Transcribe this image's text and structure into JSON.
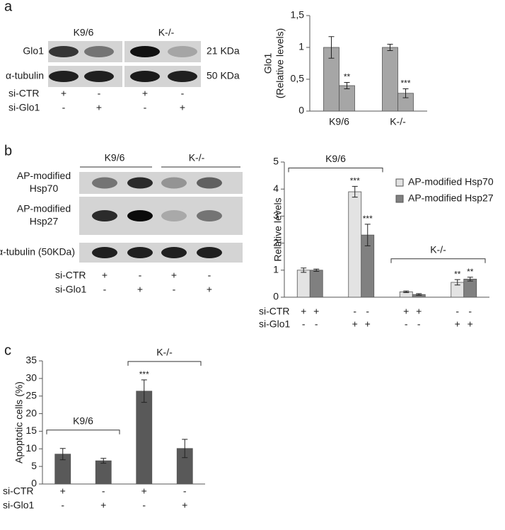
{
  "panels": [
    "a",
    "b",
    "c"
  ],
  "blot_a": {
    "groups": [
      "K9/6",
      "K-/-"
    ],
    "rows": [
      [
        "Glo1"
      ],
      [
        "α-tubulin"
      ]
    ],
    "sizes": [
      "21 KDa",
      "50 KDa"
    ],
    "treatments": [
      {
        "label": "si-CTR",
        "marks": [
          "+",
          "-",
          "+",
          "-"
        ]
      },
      {
        "label": "si-Glo1",
        "marks": [
          "-",
          "+",
          "-",
          "+"
        ]
      }
    ]
  },
  "blot_b": {
    "groups": [
      "K9/6",
      "K-/-"
    ],
    "rows": [
      [
        "AP-modified",
        "Hsp70"
      ],
      [
        "AP-modified",
        "Hsp27"
      ],
      [
        "α-tubulin (50KDa)"
      ]
    ],
    "treatments": [
      {
        "label": "si-CTR",
        "marks": [
          "+",
          "-",
          "+",
          "-"
        ]
      },
      {
        "label": "si-Glo1",
        "marks": [
          "-",
          "+",
          "-",
          "+"
        ]
      }
    ]
  },
  "chart_data": [
    {
      "type": "bar",
      "ylabel": [
        "Glo1",
        "(Relative levels)"
      ],
      "categories": [
        "K9/6",
        "K-/-"
      ],
      "ylim": [
        0,
        1.5
      ],
      "yticks": [
        0,
        {
          "value": 0.5,
          "label": "0,5"
        },
        1,
        {
          "value": 1.5,
          "label": "1,5"
        }
      ],
      "series": [
        {
          "color": "#a6a6a6",
          "values": [
            1.0,
            1.0
          ],
          "errors": [
            0.17,
            0.05
          ]
        },
        {
          "color": "#a6a6a6",
          "values": [
            0.4,
            0.28
          ],
          "errors": [
            0.05,
            0.07
          ],
          "significance": [
            "**",
            "***"
          ]
        }
      ]
    },
    {
      "type": "bar",
      "ylabel": [
        "Relative levels"
      ],
      "ylim": [
        0,
        5
      ],
      "yticks": [
        0,
        1,
        2,
        3,
        4,
        5
      ],
      "groups": [
        "K9/6",
        "K-/-"
      ],
      "series": [
        {
          "name": "AP-modified Hsp70",
          "color": "#e3e3e3",
          "values": [
            1.0,
            3.9,
            0.2,
            0.55
          ],
          "errors": [
            0.08,
            0.2,
            0.03,
            0.1
          ],
          "significance": [
            null,
            "***",
            null,
            "**"
          ]
        },
        {
          "name": "AP-modified Hsp27",
          "color": "#808080",
          "values": [
            1.0,
            2.3,
            0.1,
            0.67
          ],
          "errors": [
            0.04,
            0.4,
            0.03,
            0.07
          ],
          "significance": [
            null,
            "***",
            null,
            "**"
          ]
        }
      ],
      "treatments": [
        {
          "label": "si-CTR",
          "marks": [
            [
              "+",
              "+"
            ],
            [
              "-",
              "-"
            ],
            [
              "+",
              "+"
            ],
            [
              "-",
              "-"
            ]
          ]
        },
        {
          "label": "si-Glo1",
          "marks": [
            [
              "-",
              "-"
            ],
            [
              "+",
              "+"
            ],
            [
              "-",
              "-"
            ],
            [
              "+",
              "+"
            ]
          ]
        }
      ]
    },
    {
      "type": "bar",
      "ylabel": [
        "Apoptotic cells (%)"
      ],
      "ylim": [
        0,
        35
      ],
      "yticks": [
        0,
        5,
        10,
        15,
        20,
        25,
        30,
        35
      ],
      "groups": [
        "K9/6",
        "K-/-"
      ],
      "series": [
        {
          "color": "#595959",
          "values": [
            8.5,
            6.6,
            26.4,
            10.1
          ],
          "errors": [
            1.6,
            0.7,
            3.2,
            2.6
          ],
          "significance": [
            null,
            null,
            "***",
            null
          ]
        }
      ],
      "treatments": [
        {
          "label": "si-CTR",
          "marks": [
            "+",
            "-",
            "+",
            "-"
          ]
        },
        {
          "label": "si-Glo1",
          "marks": [
            "-",
            "+",
            "-",
            "+"
          ]
        }
      ]
    }
  ]
}
